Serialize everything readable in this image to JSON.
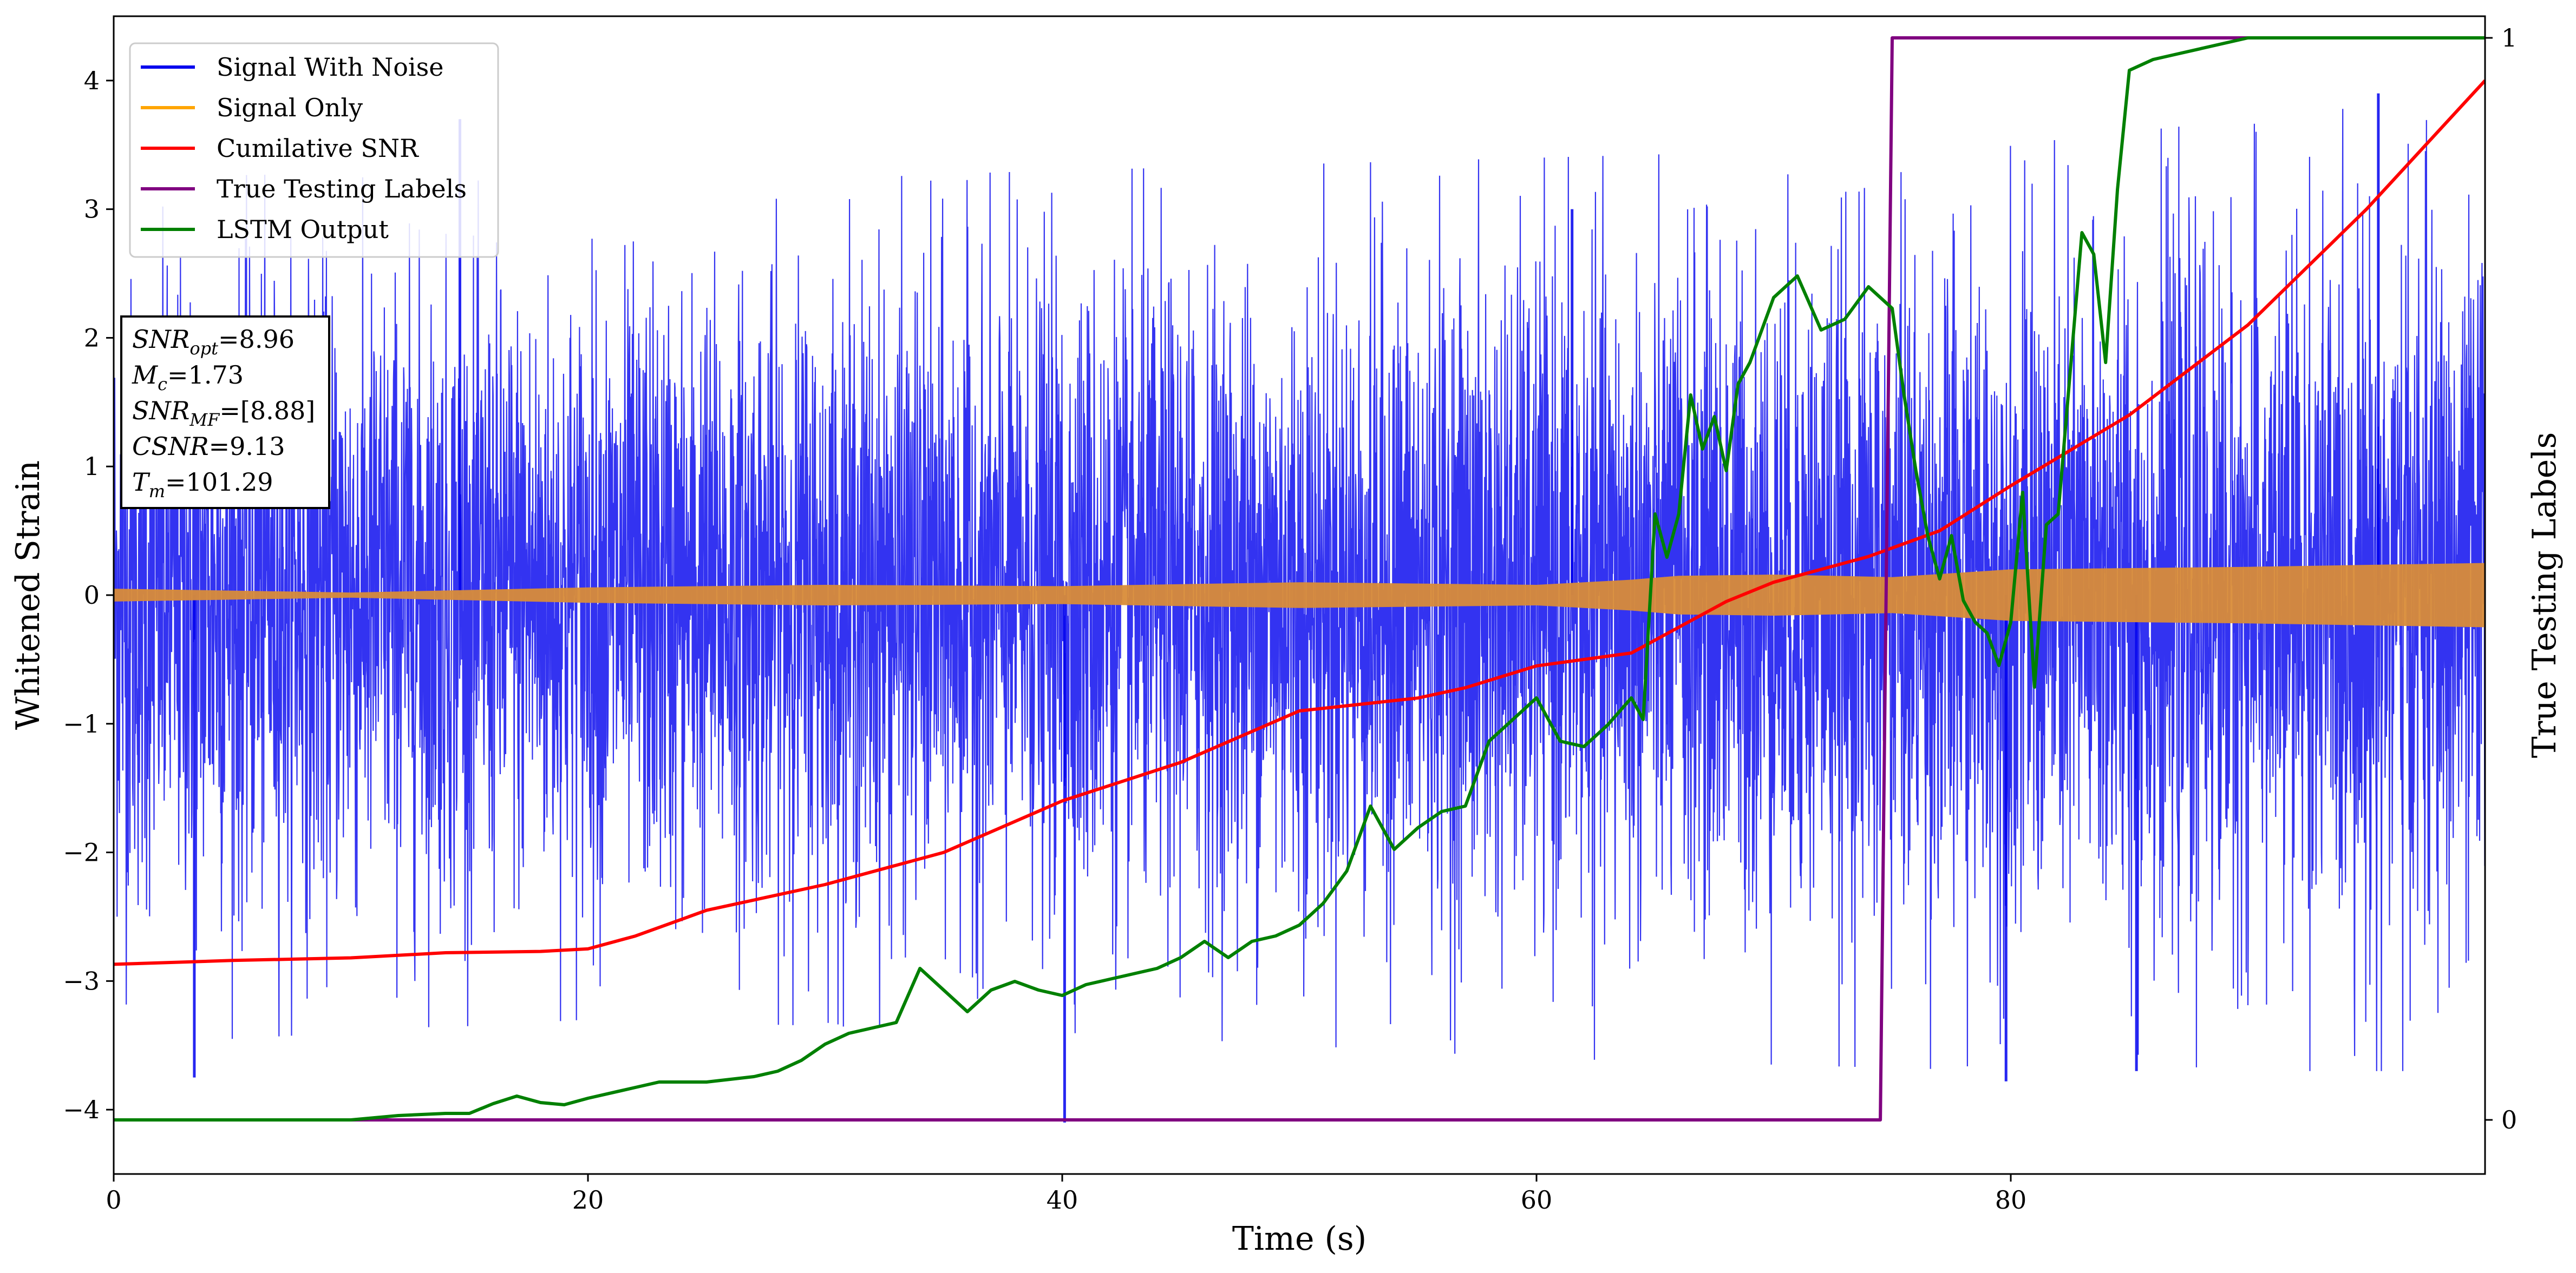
{
  "chart_data": {
    "type": "line",
    "xlabel": "Time (s)",
    "ylabel": "Whitened Strain",
    "y2label": "True Testing Labels",
    "xlim": [
      0,
      100
    ],
    "ylim": [
      -4.5,
      4.5
    ],
    "y2lim": [
      -0.05,
      1.02
    ],
    "xticks": [
      0,
      20,
      40,
      60,
      80
    ],
    "yticks": [
      -4,
      -3,
      -2,
      -1,
      0,
      1,
      2,
      3,
      4
    ],
    "y2ticks": [
      0,
      1
    ],
    "grid": false,
    "legend_position": "top-left",
    "series": [
      {
        "name": "Signal With Noise",
        "color": "#0000ee",
        "axis": "left",
        "style": "dense-noise",
        "envelope": {
          "x": [
            0,
            20,
            40,
            60,
            80,
            100
          ],
          "upper": [
            3.3,
            3.2,
            3.3,
            3.4,
            3.5,
            3.9
          ],
          "lower": [
            -3.5,
            -3.3,
            -3.4,
            -3.6,
            -3.7,
            -3.7
          ]
        },
        "x": [
          3.4,
          14.6,
          40.1,
          61.5,
          79.8,
          85.3,
          95.5
        ],
        "y": [
          -3.75,
          3.7,
          -4.1,
          3.0,
          -3.78,
          -3.7,
          3.9
        ]
      },
      {
        "name": "Signal Only",
        "color": "#ffa500",
        "axis": "left",
        "style": "band",
        "x": [
          0,
          10,
          20,
          30,
          40,
          50,
          60,
          64,
          66,
          70,
          75,
          80,
          90,
          100
        ],
        "upper": [
          0.05,
          0.02,
          0.06,
          0.08,
          0.07,
          0.1,
          0.08,
          0.12,
          0.15,
          0.16,
          0.14,
          0.2,
          0.22,
          0.25
        ],
        "lower": [
          -0.05,
          -0.02,
          -0.06,
          -0.08,
          -0.07,
          -0.1,
          -0.08,
          -0.12,
          -0.15,
          -0.16,
          -0.14,
          -0.2,
          -0.22,
          -0.25
        ]
      },
      {
        "name": "Cumilative SNR",
        "color": "#ff0000",
        "axis": "left",
        "x": [
          0,
          5,
          10,
          14,
          18,
          20,
          22,
          25,
          30,
          35,
          40,
          45,
          50,
          55,
          57,
          60,
          64,
          66,
          68,
          70,
          74,
          77,
          80,
          85,
          90,
          95,
          100
        ],
        "y": [
          -2.87,
          -2.84,
          -2.82,
          -2.78,
          -2.77,
          -2.75,
          -2.65,
          -2.45,
          -2.25,
          -2.0,
          -1.6,
          -1.3,
          -0.9,
          -0.8,
          -0.72,
          -0.55,
          -0.45,
          -0.25,
          -0.05,
          0.1,
          0.3,
          0.5,
          0.85,
          1.4,
          2.1,
          3.0,
          4.0
        ]
      },
      {
        "name": "True Testing Labels",
        "color": "#800080",
        "axis": "right",
        "x": [
          0,
          74.5,
          75.0,
          100
        ],
        "y": [
          0,
          0,
          1,
          1
        ]
      },
      {
        "name": "LSTM Output",
        "color": "#008000",
        "axis": "right",
        "x": [
          0,
          10,
          12,
          14,
          15,
          16,
          17,
          18,
          19,
          20,
          22,
          23,
          25,
          27,
          28,
          29,
          30,
          31,
          32,
          33,
          34,
          35,
          36,
          37,
          38,
          39,
          40,
          41,
          42,
          43,
          44,
          45,
          46,
          47,
          48,
          49,
          50,
          51,
          52,
          53,
          54,
          55,
          56,
          57,
          58,
          59,
          60,
          61,
          62,
          63,
          64,
          64.5,
          65,
          65.5,
          66,
          66.5,
          67,
          67.5,
          68,
          68.5,
          69,
          70,
          71,
          72,
          73,
          74,
          75,
          75.5,
          76,
          76.5,
          77,
          77.5,
          78,
          78.5,
          79,
          79.5,
          80,
          80.5,
          81,
          81.5,
          82,
          83,
          83.5,
          84,
          84.5,
          85,
          86,
          87,
          88,
          89,
          90,
          95,
          100
        ],
        "y": [
          0,
          0,
          0.004,
          0.006,
          0.006,
          0.015,
          0.022,
          0.016,
          0.014,
          0.02,
          0.03,
          0.035,
          0.035,
          0.04,
          0.045,
          0.055,
          0.07,
          0.08,
          0.085,
          0.09,
          0.14,
          0.12,
          0.1,
          0.12,
          0.128,
          0.12,
          0.115,
          0.125,
          0.13,
          0.135,
          0.14,
          0.15,
          0.165,
          0.15,
          0.165,
          0.17,
          0.18,
          0.2,
          0.23,
          0.29,
          0.25,
          0.27,
          0.285,
          0.29,
          0.35,
          0.37,
          0.39,
          0.35,
          0.345,
          0.365,
          0.39,
          0.37,
          0.56,
          0.52,
          0.56,
          0.67,
          0.62,
          0.65,
          0.6,
          0.68,
          0.7,
          0.76,
          0.78,
          0.73,
          0.74,
          0.77,
          0.75,
          0.67,
          0.6,
          0.54,
          0.5,
          0.54,
          0.48,
          0.46,
          0.45,
          0.42,
          0.46,
          0.58,
          0.4,
          0.55,
          0.56,
          0.82,
          0.8,
          0.7,
          0.86,
          0.97,
          0.98,
          0.985,
          0.99,
          0.995,
          1.0,
          1.0,
          1.0
        ]
      }
    ],
    "annotation": {
      "lines": [
        {
          "label": "SNR",
          "sub": "opt",
          "value": "=8.96"
        },
        {
          "label": "M",
          "sub": "c",
          "value": "=1.73"
        },
        {
          "label": "SNR",
          "sub": "MF",
          "value": "=[8.88]"
        },
        {
          "label": "CSNR",
          "sub": "",
          "value": "=9.13"
        },
        {
          "label": "T",
          "sub": "m",
          "value": "=101.29"
        }
      ]
    }
  }
}
